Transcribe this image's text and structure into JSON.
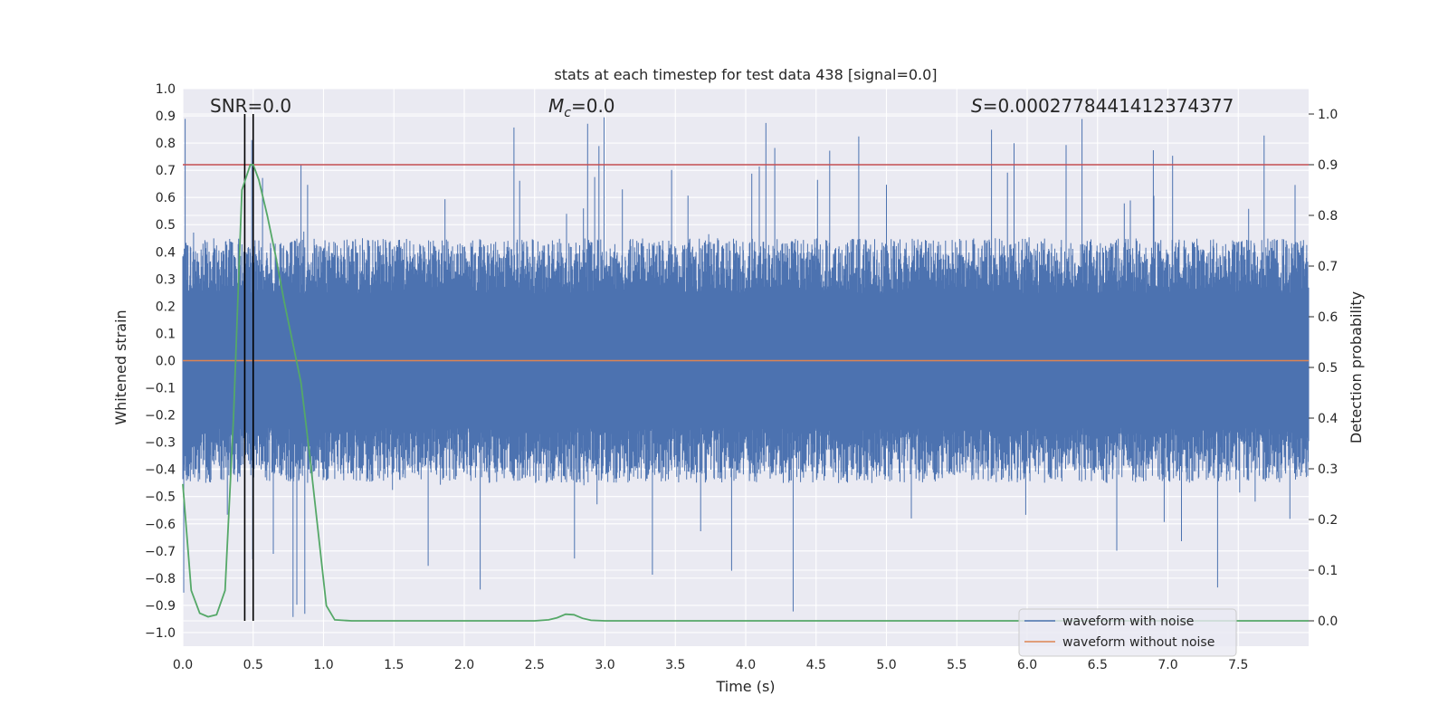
{
  "chart_data": {
    "type": "line",
    "title": "stats at each timestep for test data 438 [signal=0.0]",
    "xlabel": "Time (s)",
    "ylabel_left": "Whitened strain",
    "ylabel_right": "Detection probability",
    "xlim": [
      0.0,
      8.0
    ],
    "ylim_left": [
      -1.05,
      1.0
    ],
    "ylim_right": [
      -0.05,
      1.05
    ],
    "x_ticks": [
      "0.0",
      "0.5",
      "1.0",
      "1.5",
      "2.0",
      "2.5",
      "3.0",
      "3.5",
      "4.0",
      "4.5",
      "5.0",
      "5.5",
      "6.0",
      "6.5",
      "7.0",
      "7.5"
    ],
    "y_left_ticks": [
      "1.0",
      "0.9",
      "0.8",
      "0.7",
      "0.6",
      "0.5",
      "0.4",
      "0.3",
      "0.2",
      "0.1",
      "0.0",
      "−0.1",
      "−0.2",
      "−0.3",
      "−0.4",
      "−0.5",
      "−0.6",
      "−0.7",
      "−0.8",
      "−0.9",
      "−1.0"
    ],
    "y_right_ticks": [
      "0.0",
      "0.1",
      "0.2",
      "0.3",
      "0.4",
      "0.5",
      "0.6",
      "0.7",
      "0.8",
      "0.9",
      "1.0"
    ],
    "annotations": {
      "snr": "SNR=0.0",
      "mc_symbol": "M",
      "mc_subscript": "c",
      "mc_value": "=0.0",
      "s_symbol": "S",
      "s_value": "=0.0002778441412374377"
    },
    "threshold_probability": 0.9,
    "vertical_markers_x": [
      0.44,
      0.5
    ],
    "noise_envelope": {
      "typical_positive_peak": 0.45,
      "typical_negative_peak": -0.45,
      "max_positive_peak": 0.9,
      "min_negative_peak": -1.0
    },
    "series": [
      {
        "name": "waveform with noise",
        "color": "#4c72b0",
        "axis": "left",
        "description_kind": "whitened noise strain, dense oscillation"
      },
      {
        "name": "waveform without noise",
        "color": "#dd8452",
        "axis": "left",
        "x": [
          0.0,
          8.0
        ],
        "y": [
          0.0,
          0.0
        ]
      },
      {
        "name": "detection probability",
        "color": "#55a868",
        "axis": "right",
        "x": [
          0.0,
          0.06,
          0.12,
          0.18,
          0.24,
          0.3,
          0.36,
          0.42,
          0.48,
          0.5,
          0.54,
          0.6,
          0.66,
          0.72,
          0.78,
          0.84,
          0.9,
          0.96,
          1.02,
          1.08,
          1.2,
          1.5,
          2.0,
          2.5,
          2.6,
          2.66,
          2.72,
          2.78,
          2.84,
          2.9,
          3.0,
          4.0,
          5.0,
          6.0,
          7.0,
          8.0
        ],
        "y": [
          0.27,
          0.06,
          0.015,
          0.008,
          0.012,
          0.06,
          0.4,
          0.85,
          0.9,
          0.9,
          0.87,
          0.8,
          0.72,
          0.63,
          0.55,
          0.47,
          0.33,
          0.18,
          0.03,
          0.002,
          0.0,
          0.0,
          0.0,
          0.0,
          0.002,
          0.006,
          0.013,
          0.012,
          0.005,
          0.001,
          0.0,
          0.0,
          0.0,
          0.0,
          0.0,
          0.0
        ]
      }
    ],
    "legend": [
      "waveform with noise",
      "waveform without noise"
    ],
    "legend_position": "lower-right",
    "colors": {
      "plot_background": "#eaeaf2",
      "grid": "#ffffff",
      "threshold": "#c44e52",
      "markers": "#000000"
    }
  }
}
